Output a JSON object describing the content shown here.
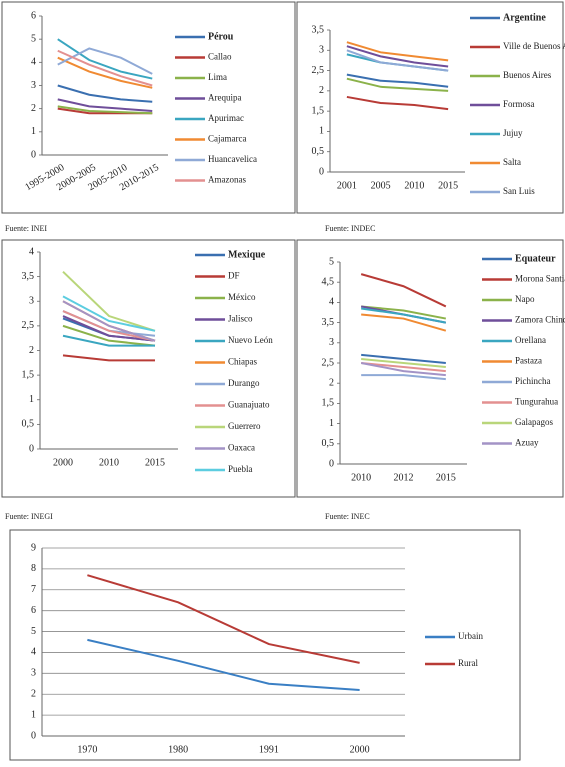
{
  "chart_data": [
    {
      "type": "line",
      "source": "Fuente: INEI",
      "grid": false,
      "categories": [
        "1995-2000",
        "2000-2005",
        "2005-2010",
        "2010-2015"
      ],
      "ylim": [
        0,
        6
      ],
      "yticks": [
        0,
        1,
        2,
        3,
        4,
        5,
        6
      ],
      "series": [
        {
          "name": "Pérou",
          "color": "#3a6fb0",
          "values": [
            3.0,
            2.6,
            2.4,
            2.3
          ]
        },
        {
          "name": "Callao",
          "color": "#b83b36",
          "values": [
            2.0,
            1.8,
            1.8,
            1.8
          ]
        },
        {
          "name": "Lima",
          "color": "#8bb24a",
          "values": [
            2.1,
            1.9,
            1.85,
            1.8
          ]
        },
        {
          "name": "Arequipa",
          "color": "#6f4e9a",
          "values": [
            2.4,
            2.1,
            2.0,
            1.9
          ]
        },
        {
          "name": "Apurimac",
          "color": "#3aa6c0",
          "values": [
            5.0,
            4.1,
            3.6,
            3.3
          ]
        },
        {
          "name": "Cajamarca",
          "color": "#f08a32",
          "values": [
            4.2,
            3.6,
            3.2,
            2.9
          ]
        },
        {
          "name": "Huancavelica",
          "color": "#8fa9d6",
          "values": [
            3.9,
            4.6,
            4.2,
            3.5
          ]
        },
        {
          "name": "Amazonas",
          "color": "#e39090",
          "values": [
            4.5,
            3.9,
            3.4,
            3.0
          ]
        }
      ]
    },
    {
      "type": "line",
      "source": "Fuente: INDEC",
      "grid": false,
      "categories": [
        "2001",
        "2005",
        "2010",
        "2015"
      ],
      "ylim": [
        0,
        3.5
      ],
      "yticks": [
        0,
        {
          "value": 0.5,
          "label": "0,5"
        },
        1,
        {
          "value": 1.5,
          "label": "1,5"
        },
        2,
        {
          "value": 2.5,
          "label": "2,5"
        },
        3,
        {
          "value": 3.5,
          "label": "3,5"
        }
      ],
      "series": [
        {
          "name": "Argentine",
          "color": "#3a6fb0",
          "values": [
            2.4,
            2.25,
            2.2,
            2.1
          ]
        },
        {
          "name": "Ville de Buenos Aires",
          "color": "#b83b36",
          "values": [
            1.85,
            1.7,
            1.65,
            1.55
          ]
        },
        {
          "name": "Buenos Aires",
          "color": "#8bb24a",
          "values": [
            2.3,
            2.1,
            2.05,
            2.0
          ]
        },
        {
          "name": "Formosa",
          "color": "#6f4e9a",
          "values": [
            3.1,
            2.85,
            2.7,
            2.6
          ]
        },
        {
          "name": "Jujuy",
          "color": "#3aa6c0",
          "values": [
            2.9,
            2.7,
            2.6,
            2.5
          ]
        },
        {
          "name": "Salta",
          "color": "#f08a32",
          "values": [
            3.2,
            2.95,
            2.85,
            2.75
          ]
        },
        {
          "name": "San Luis",
          "color": "#8fa9d6",
          "values": [
            3.0,
            2.7,
            2.6,
            2.5
          ]
        }
      ]
    },
    {
      "type": "line",
      "source": "Fuente: INEGI",
      "grid": false,
      "categories": [
        "2000",
        "2010",
        "2015"
      ],
      "ylim": [
        0,
        4
      ],
      "yticks": [
        0,
        {
          "value": 0.5,
          "label": "0,5"
        },
        1,
        {
          "value": 1.5,
          "label": "1,5"
        },
        2,
        {
          "value": 2.5,
          "label": "2,5"
        },
        3,
        {
          "value": 3.5,
          "label": "3,5"
        },
        4
      ],
      "series": [
        {
          "name": "Mexique",
          "color": "#3a6fb0",
          "values": [
            2.65,
            2.3,
            2.2
          ]
        },
        {
          "name": "DF",
          "color": "#b83b36",
          "values": [
            1.9,
            1.8,
            1.8
          ]
        },
        {
          "name": "México",
          "color": "#8bb24a",
          "values": [
            2.5,
            2.2,
            2.1
          ]
        },
        {
          "name": "Jalisco",
          "color": "#6f4e9a",
          "values": [
            2.7,
            2.3,
            2.2
          ]
        },
        {
          "name": "Nuevo León",
          "color": "#3aa6c0",
          "values": [
            2.3,
            2.1,
            2.1
          ]
        },
        {
          "name": "Chiapas",
          "color": "#f08a32",
          "values": [
            3.0,
            2.5,
            2.2
          ]
        },
        {
          "name": "Durango",
          "color": "#8fa9d6",
          "values": [
            2.8,
            2.4,
            2.3
          ]
        },
        {
          "name": "Guanajuato",
          "color": "#e39090",
          "values": [
            2.8,
            2.4,
            2.2
          ]
        },
        {
          "name": "Guerrero",
          "color": "#b9d67a",
          "values": [
            3.6,
            2.7,
            2.4
          ]
        },
        {
          "name": "Oaxaca",
          "color": "#a393c6",
          "values": [
            3.0,
            2.5,
            2.2
          ]
        },
        {
          "name": "Puebla",
          "color": "#5ccde0",
          "values": [
            3.1,
            2.6,
            2.4
          ]
        }
      ]
    },
    {
      "type": "line",
      "source": "Fuente: INEC",
      "grid": false,
      "categories": [
        "2010",
        "2012",
        "2015"
      ],
      "ylim": [
        0,
        5
      ],
      "yticks": [
        0,
        {
          "value": 0.5,
          "label": "0,5"
        },
        1,
        {
          "value": 1.5,
          "label": "1,5"
        },
        2,
        {
          "value": 2.5,
          "label": "2,5"
        },
        3,
        {
          "value": 3.5,
          "label": "3,5"
        },
        4,
        {
          "value": 4.5,
          "label": "4,5"
        },
        5
      ],
      "series": [
        {
          "name": "Equateur",
          "color": "#3a6fb0",
          "values": [
            2.7,
            2.6,
            2.5
          ]
        },
        {
          "name": "Morona Santiago",
          "color": "#b83b36",
          "values": [
            4.7,
            4.4,
            3.9
          ]
        },
        {
          "name": "Napo",
          "color": "#8bb24a",
          "values": [
            3.9,
            3.8,
            3.6
          ]
        },
        {
          "name": "Zamora Chinchipe",
          "color": "#6f4e9a",
          "values": [
            3.9,
            3.7,
            3.5
          ]
        },
        {
          "name": "Orellana",
          "color": "#3aa6c0",
          "values": [
            3.85,
            3.7,
            3.5
          ]
        },
        {
          "name": "Pastaza",
          "color": "#f08a32",
          "values": [
            3.7,
            3.6,
            3.3
          ]
        },
        {
          "name": "Pichincha",
          "color": "#8fa9d6",
          "values": [
            2.2,
            2.2,
            2.1
          ]
        },
        {
          "name": "Tungurahua",
          "color": "#e39090",
          "values": [
            2.5,
            2.4,
            2.3
          ]
        },
        {
          "name": "Galapagos",
          "color": "#b9d67a",
          "values": [
            2.6,
            2.5,
            2.4
          ]
        },
        {
          "name": "Azuay",
          "color": "#a393c6",
          "values": [
            2.5,
            2.3,
            2.2
          ]
        }
      ]
    },
    {
      "type": "line",
      "grid": true,
      "categories": [
        "1970",
        "1980",
        "1991",
        "2000"
      ],
      "ylim": [
        0,
        9
      ],
      "yticks": [
        0,
        1,
        2,
        3,
        4,
        5,
        6,
        7,
        8,
        9
      ],
      "series": [
        {
          "name": "Urbain",
          "color": "#3a7fc4",
          "values": [
            4.6,
            3.6,
            2.5,
            2.2
          ]
        },
        {
          "name": "Rural",
          "color": "#b83b36",
          "values": [
            7.7,
            6.4,
            4.4,
            3.5
          ]
        }
      ]
    }
  ]
}
